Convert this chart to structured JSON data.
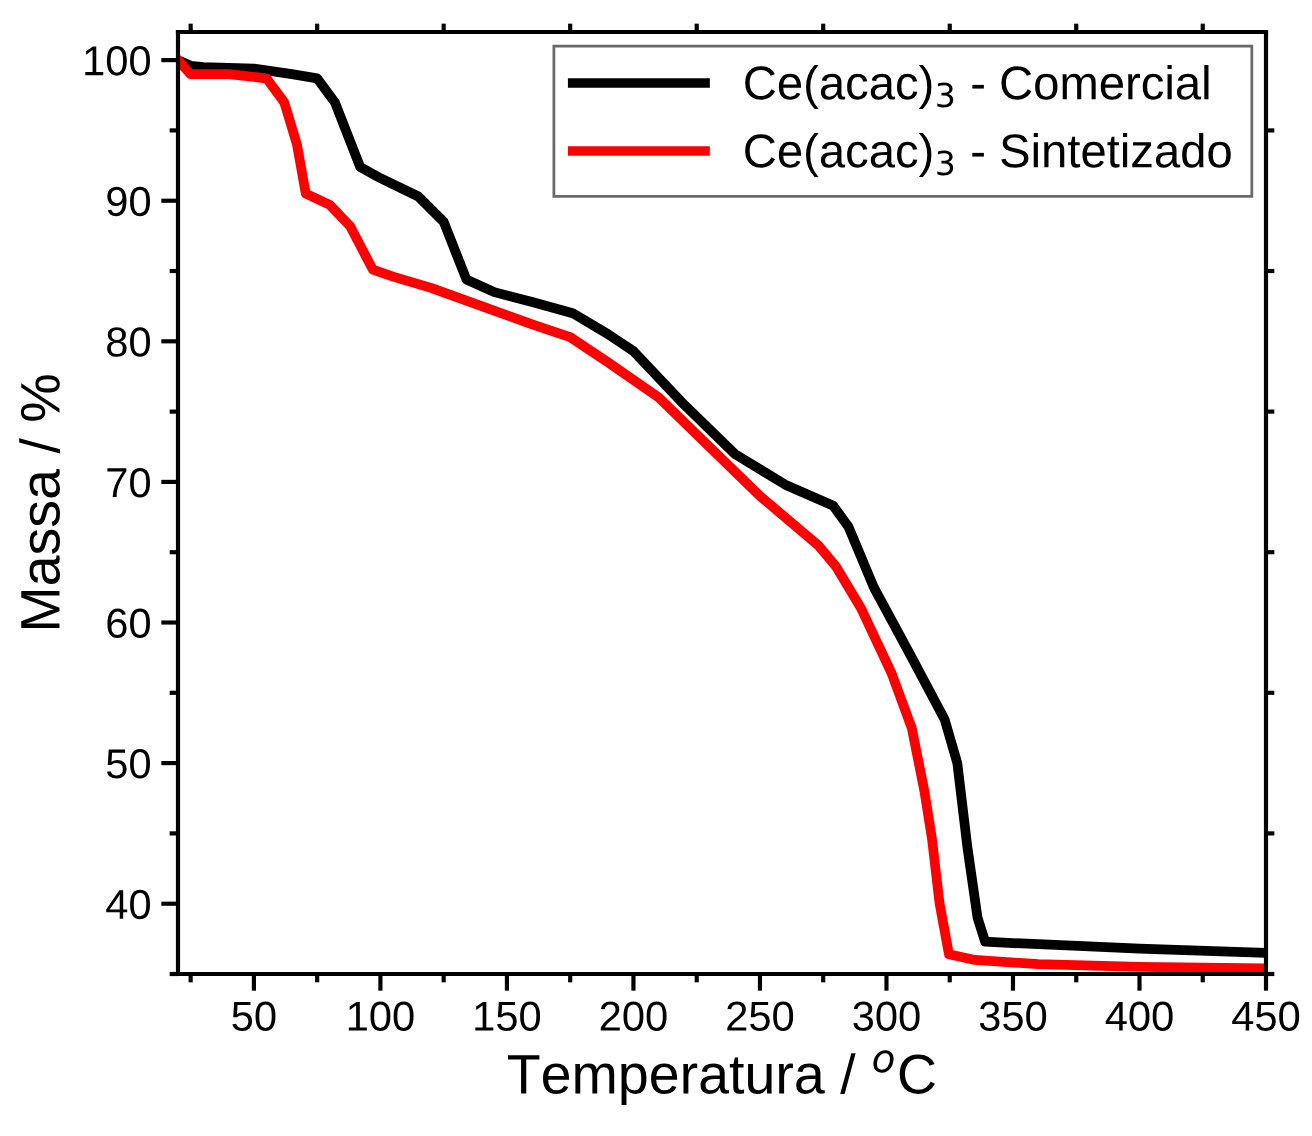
{
  "chart_data": {
    "type": "line",
    "xlabel": "Temperatura / $^{o}$C",
    "ylabel": "Massa / %",
    "xlim": [
      20,
      450
    ],
    "xticks": [
      50,
      100,
      150,
      200,
      250,
      300,
      350,
      400,
      450
    ],
    "ylim": [
      35,
      102
    ],
    "yticks": [
      40,
      50,
      60,
      70,
      80,
      90,
      100
    ],
    "grid": false,
    "legend": "top right",
    "marker": "none",
    "line_style": "solid",
    "series": [
      {
        "name": "Ce(acac)$_{3}$ - Comercial",
        "color": "#000000",
        "x": [
          20,
          25,
          30,
          50,
          65,
          75,
          82,
          92,
          100,
          115,
          125,
          134,
          145,
          160,
          176,
          190,
          200,
          220,
          240,
          260,
          279,
          285,
          295,
          310,
          323,
          328,
          332,
          336,
          339,
          350,
          400,
          450
        ],
        "values": [
          100,
          99.6,
          99.5,
          99.4,
          99,
          98.7,
          97,
          92.4,
          91.6,
          90.3,
          88.5,
          84.4,
          83.5,
          82.8,
          82,
          80.5,
          79.3,
          75.5,
          72,
          69.8,
          68.3,
          66.8,
          62.5,
          57.5,
          53.1,
          50,
          44,
          39,
          37.3,
          37.2,
          36.8,
          36.5
        ]
      },
      {
        "name": "Ce(acac)$_{3}$ - Sintetizado",
        "color": "#ff0000",
        "x": [
          20,
          25,
          40,
          55,
          62,
          67,
          70.5,
          80,
          88,
          97,
          105,
          120,
          140,
          160,
          175,
          190,
          210,
          230,
          250,
          273,
          280,
          290,
          302,
          310,
          315,
          318,
          321,
          324.7,
          335,
          360,
          400,
          450
        ],
        "values": [
          100,
          99,
          99,
          98.7,
          97,
          94,
          90.5,
          89.7,
          88.2,
          85.1,
          84.6,
          83.8,
          82.5,
          81.2,
          80.3,
          78.5,
          76,
          72.5,
          69,
          65.5,
          64,
          61,
          56.4,
          52.5,
          48,
          44.6,
          40,
          36.4,
          36,
          35.7,
          35.5,
          35.4
        ]
      }
    ]
  }
}
